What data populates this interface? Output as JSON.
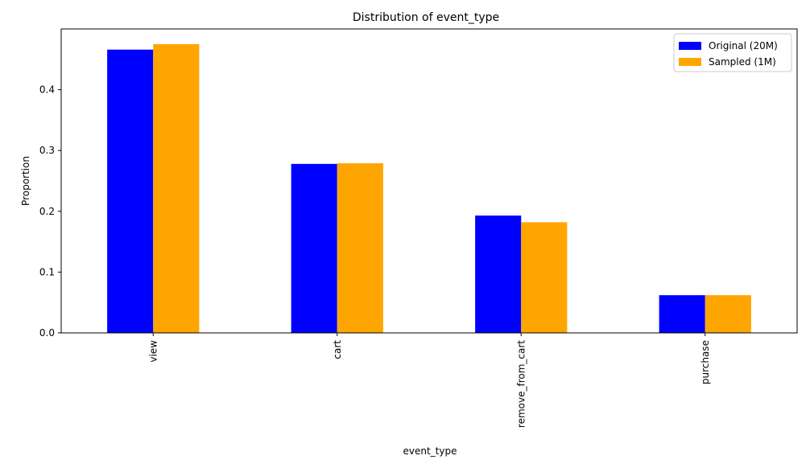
{
  "chart_data": {
    "type": "bar",
    "title": "Distribution of event_type",
    "xlabel": "event_type",
    "ylabel": "Proportion",
    "categories": [
      "view",
      "cart",
      "remove_from_cart",
      "purchase"
    ],
    "series": [
      {
        "name": "Original (20M)",
        "color": "#0000ff",
        "values": [
          0.466,
          0.278,
          0.193,
          0.062
        ]
      },
      {
        "name": "Sampled (1M)",
        "color": "#ffa500",
        "values": [
          0.475,
          0.279,
          0.182,
          0.062
        ]
      }
    ],
    "ylim": [
      0,
      0.5
    ],
    "yticks": [
      0.0,
      0.1,
      0.2,
      0.3,
      0.4
    ],
    "ytick_labels": [
      "0.0",
      "0.1",
      "0.2",
      "0.3",
      "0.4"
    ],
    "grid": false,
    "legend_position": "top-right"
  }
}
